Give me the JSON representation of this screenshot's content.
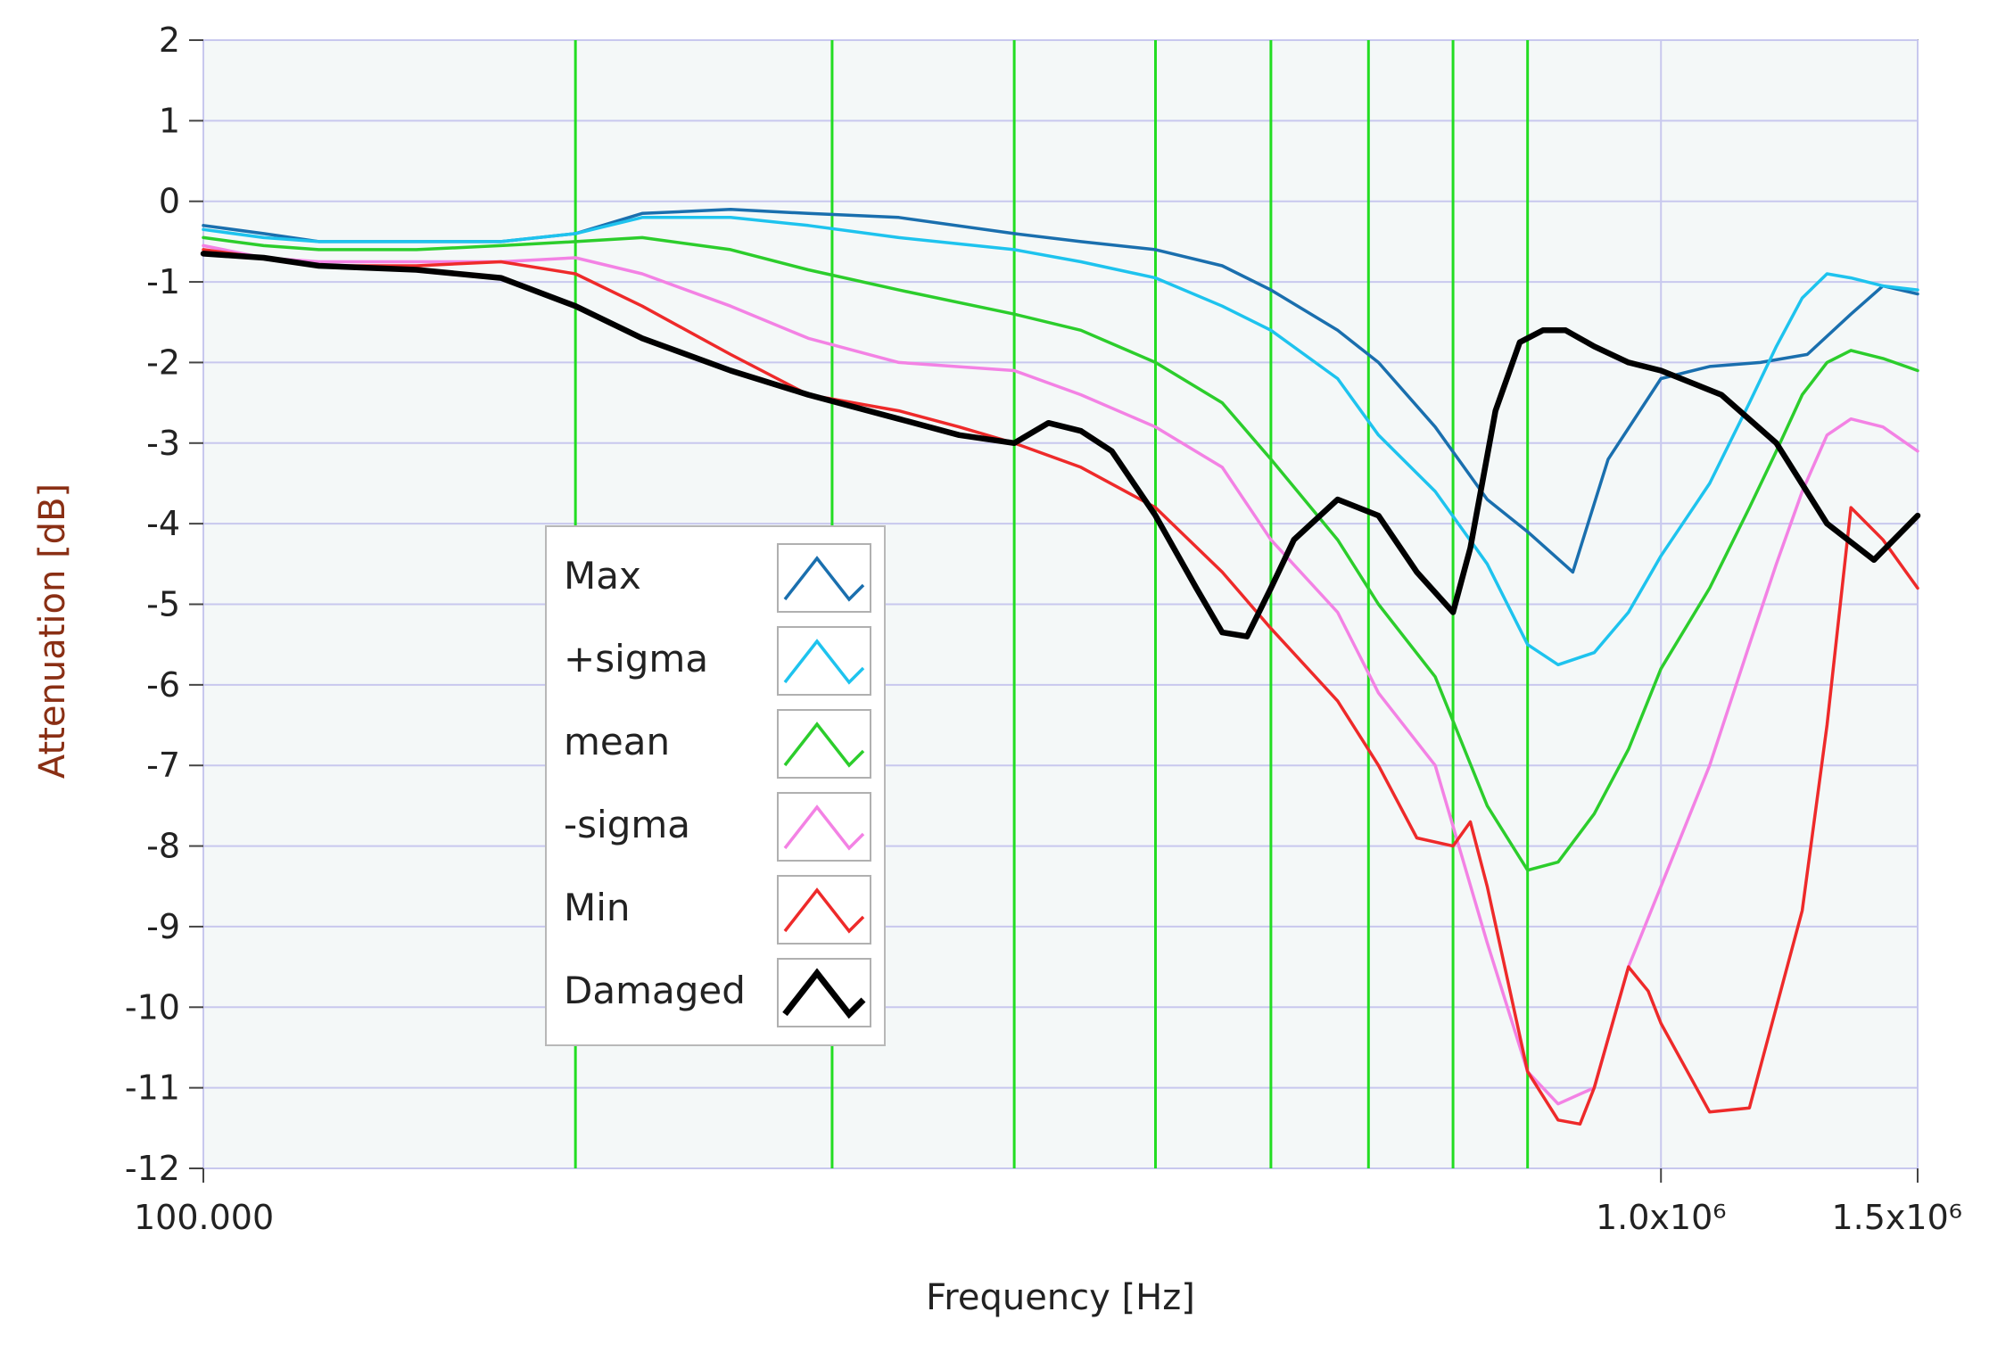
{
  "chart_data": {
    "type": "line",
    "title": "",
    "xlabel": "Frequency [Hz]",
    "ylabel": "Attenuation [dB]",
    "x_scale": "log",
    "xlim": [
      100000,
      1500000
    ],
    "ylim": [
      -12,
      2
    ],
    "y_ticks": [
      2,
      1,
      0,
      -1,
      -2,
      -3,
      -4,
      -5,
      -6,
      -7,
      -8,
      -9,
      -10,
      -11,
      -12
    ],
    "y_tick_labels": [
      "2",
      "1",
      "0",
      "-1",
      "-2",
      "-3",
      "-4",
      "-5",
      "-6",
      "-7",
      "-8",
      "-9",
      "-10",
      "-11",
      "-12"
    ],
    "x_ticks": [
      100000,
      1000000,
      1500000
    ],
    "x_tick_labels": [
      "100.000",
      "1.0x10⁶",
      "1.5x10⁶"
    ],
    "grid": true,
    "vertical_markers": [
      180000,
      270000,
      360000,
      450000,
      540000,
      630000,
      720000,
      810000
    ],
    "legend_position": "center-left",
    "colors": {
      "plot_background": "#f4f8f8",
      "grid": "#c8c8ee",
      "marker_lines": "#22dd22"
    },
    "series": [
      {
        "name": "Max",
        "color": "#1a6fae",
        "x": [
          100000,
          110000,
          120000,
          140000,
          160000,
          180000,
          200000,
          230000,
          260000,
          300000,
          360000,
          400000,
          450000,
          500000,
          540000,
          600000,
          640000,
          700000,
          760000,
          810000,
          870000,
          920000,
          1000000,
          1080000,
          1170000,
          1260000,
          1350000,
          1420000,
          1500000
        ],
        "values": [
          -0.3,
          -0.4,
          -0.5,
          -0.5,
          -0.5,
          -0.4,
          -0.15,
          -0.1,
          -0.15,
          -0.2,
          -0.4,
          -0.5,
          -0.6,
          -0.8,
          -1.1,
          -1.6,
          -2.0,
          -2.8,
          -3.7,
          -4.1,
          -4.6,
          -3.2,
          -2.2,
          -2.05,
          -2.0,
          -1.9,
          -1.4,
          -1.05,
          -1.15
        ]
      },
      {
        "name": "+sigma",
        "color": "#1ec3ee",
        "x": [
          100000,
          110000,
          120000,
          140000,
          160000,
          180000,
          200000,
          230000,
          260000,
          300000,
          360000,
          400000,
          450000,
          500000,
          540000,
          600000,
          640000,
          700000,
          760000,
          810000,
          850000,
          900000,
          950000,
          1000000,
          1080000,
          1150000,
          1200000,
          1250000,
          1300000,
          1350000,
          1420000,
          1500000
        ],
        "values": [
          -0.35,
          -0.45,
          -0.5,
          -0.5,
          -0.5,
          -0.4,
          -0.2,
          -0.2,
          -0.3,
          -0.45,
          -0.6,
          -0.75,
          -0.95,
          -1.3,
          -1.6,
          -2.2,
          -2.9,
          -3.6,
          -4.5,
          -5.5,
          -5.75,
          -5.6,
          -5.1,
          -4.4,
          -3.5,
          -2.5,
          -1.8,
          -1.2,
          -0.9,
          -0.95,
          -1.05,
          -1.1
        ]
      },
      {
        "name": "mean",
        "color": "#2ccd2c",
        "x": [
          100000,
          110000,
          120000,
          140000,
          160000,
          180000,
          200000,
          230000,
          260000,
          300000,
          360000,
          400000,
          450000,
          500000,
          540000,
          600000,
          640000,
          700000,
          760000,
          810000,
          850000,
          900000,
          950000,
          1000000,
          1080000,
          1150000,
          1200000,
          1250000,
          1300000,
          1350000,
          1420000,
          1500000
        ],
        "values": [
          -0.45,
          -0.55,
          -0.6,
          -0.6,
          -0.55,
          -0.5,
          -0.45,
          -0.6,
          -0.85,
          -1.1,
          -1.4,
          -1.6,
          -2.0,
          -2.5,
          -3.2,
          -4.2,
          -5.0,
          -5.9,
          -7.5,
          -8.3,
          -8.2,
          -7.6,
          -6.8,
          -5.8,
          -4.8,
          -3.8,
          -3.1,
          -2.4,
          -2.0,
          -1.85,
          -1.95,
          -2.1
        ]
      },
      {
        "name": "-sigma",
        "color": "#f382e4",
        "x": [
          100000,
          110000,
          120000,
          140000,
          160000,
          180000,
          200000,
          230000,
          260000,
          300000,
          360000,
          400000,
          450000,
          500000,
          540000,
          600000,
          640000,
          700000,
          760000,
          810000,
          850000,
          900000,
          950000,
          1000000,
          1080000,
          1150000,
          1200000,
          1250000,
          1300000,
          1350000,
          1420000,
          1500000
        ],
        "values": [
          -0.55,
          -0.7,
          -0.75,
          -0.75,
          -0.75,
          -0.7,
          -0.9,
          -1.3,
          -1.7,
          -2.0,
          -2.1,
          -2.4,
          -2.8,
          -3.3,
          -4.2,
          -5.1,
          -6.1,
          -7.0,
          -9.2,
          -10.8,
          -11.2,
          -11.0,
          -9.5,
          -8.5,
          -7.0,
          -5.5,
          -4.5,
          -3.6,
          -2.9,
          -2.7,
          -2.8,
          -3.1
        ]
      },
      {
        "name": "Min",
        "color": "#ee2a2a",
        "x": [
          100000,
          110000,
          120000,
          140000,
          160000,
          180000,
          200000,
          230000,
          260000,
          300000,
          330000,
          360000,
          400000,
          450000,
          500000,
          540000,
          600000,
          640000,
          680000,
          720000,
          740000,
          760000,
          810000,
          850000,
          880000,
          900000,
          950000,
          980000,
          1000000,
          1080000,
          1150000,
          1250000,
          1300000,
          1350000,
          1420000,
          1500000
        ],
        "values": [
          -0.6,
          -0.7,
          -0.8,
          -0.8,
          -0.75,
          -0.9,
          -1.3,
          -1.9,
          -2.4,
          -2.6,
          -2.8,
          -3.0,
          -3.3,
          -3.8,
          -4.6,
          -5.3,
          -6.2,
          -7.0,
          -7.9,
          -8.0,
          -7.7,
          -8.5,
          -10.8,
          -11.4,
          -11.45,
          -11.0,
          -9.5,
          -9.8,
          -10.2,
          -11.3,
          -11.25,
          -8.8,
          -6.5,
          -3.8,
          -4.2,
          -4.8
        ]
      },
      {
        "name": "Damaged",
        "color": "#000000",
        "x": [
          100000,
          110000,
          120000,
          140000,
          160000,
          180000,
          200000,
          230000,
          260000,
          300000,
          330000,
          360000,
          380000,
          400000,
          420000,
          450000,
          480000,
          500000,
          520000,
          540000,
          560000,
          600000,
          640000,
          680000,
          720000,
          740000,
          770000,
          800000,
          830000,
          860000,
          900000,
          950000,
          1000000,
          1100000,
          1200000,
          1300000,
          1400000,
          1500000
        ],
        "values": [
          -0.65,
          -0.7,
          -0.8,
          -0.85,
          -0.95,
          -1.3,
          -1.7,
          -2.1,
          -2.4,
          -2.7,
          -2.9,
          -3.0,
          -2.75,
          -2.85,
          -3.1,
          -3.9,
          -4.8,
          -5.35,
          -5.4,
          -4.8,
          -4.2,
          -3.7,
          -3.9,
          -4.6,
          -5.1,
          -4.3,
          -2.6,
          -1.75,
          -1.6,
          -1.6,
          -1.8,
          -2.0,
          -2.1,
          -2.4,
          -3.0,
          -4.0,
          -4.45,
          -3.9
        ]
      }
    ]
  }
}
